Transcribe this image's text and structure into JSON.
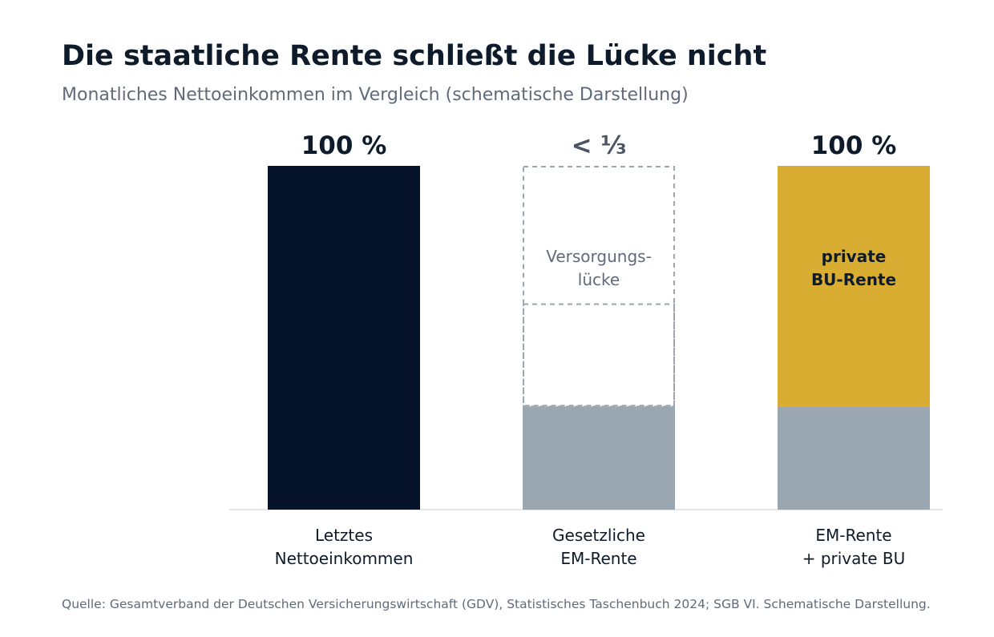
{
  "title": "Die staatliche Rente schließt die Lücke nicht",
  "subtitle": "Monatliches Nettoeinkommen im Vergleich (schematische Darstellung)",
  "source": "Quelle: Gesamtverband der Deutschen Versicherungswirtschaft (GDV), Statistisches Taschenbuch 2024; SGB VI. Schematische Darstellung.",
  "colors": {
    "navy": "#05142a",
    "gray": "#9ba7b0",
    "gold": "#d8ad32",
    "gap_border": "#9ba7b0",
    "muted_text": "#4a5563",
    "dark_text": "#0d1b2a"
  },
  "chart_data": {
    "type": "bar",
    "stacked": true,
    "ylim": [
      0,
      100
    ],
    "categories": [
      [
        "Letztes",
        "Nettoeinkommen"
      ],
      [
        "Gesetzliche",
        "EM-Rente"
      ],
      [
        "EM-Rente",
        "+ private BU"
      ]
    ],
    "value_labels": [
      "100 %",
      "< ⅓",
      "100 %"
    ],
    "bars": [
      {
        "segments": [
          {
            "value": 100,
            "color": "#05142a",
            "style": "solid",
            "label": []
          }
        ]
      },
      {
        "segments": [
          {
            "value": 30,
            "color": "#9ba7b0",
            "style": "solid",
            "label": []
          },
          {
            "value": 70,
            "color": "#9ba7b0",
            "style": "dashed-outline",
            "label": [
              "Versorgungs-",
              "lücke"
            ],
            "label_color": "#5f6b7a",
            "label_bold": false
          }
        ]
      },
      {
        "segments": [
          {
            "value": 30,
            "color": "#9ba7b0",
            "style": "solid",
            "label": []
          },
          {
            "value": 70,
            "color": "#d8ad32",
            "style": "solid",
            "label": [
              "private",
              "BU-Rente"
            ],
            "label_color": "#0d1b2a",
            "label_bold": true
          }
        ]
      }
    ],
    "grid": false,
    "legend": "none"
  }
}
